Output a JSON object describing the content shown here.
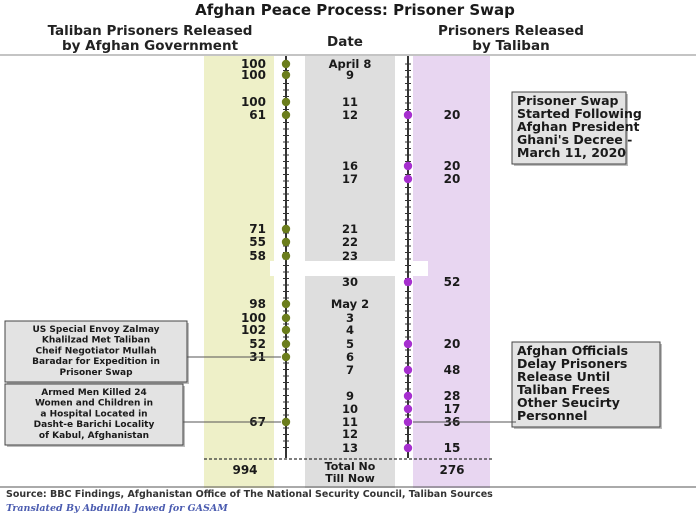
{
  "chart_data": {
    "type": "table",
    "title": "Afghan Peace Process: Prisoner Swap",
    "headers": {
      "left": [
        "Taliban Prisoners Released",
        "by Afghan Government"
      ],
      "center": "Date",
      "right": [
        "Prisoners Released",
        "by Taliban"
      ]
    },
    "rows": [
      {
        "date": "April 8",
        "gov": 100,
        "taliban": null
      },
      {
        "date": "9",
        "gov": 100,
        "taliban": null
      },
      {
        "date": "11",
        "gov": 100,
        "taliban": null
      },
      {
        "date": "12",
        "gov": 61,
        "taliban": 20
      },
      {
        "date": "16",
        "gov": null,
        "taliban": 20
      },
      {
        "date": "17",
        "gov": null,
        "taliban": 20
      },
      {
        "date": "21",
        "gov": 71,
        "taliban": null
      },
      {
        "date": "22",
        "gov": 55,
        "taliban": null
      },
      {
        "date": "23",
        "gov": 58,
        "taliban": null
      },
      {
        "date": "30",
        "gov": null,
        "taliban": 52
      },
      {
        "date": "May 2",
        "gov": 98,
        "taliban": null
      },
      {
        "date": "3",
        "gov": 100,
        "taliban": null
      },
      {
        "date": "4",
        "gov": 102,
        "taliban": null
      },
      {
        "date": "5",
        "gov": 52,
        "taliban": 20
      },
      {
        "date": "6",
        "gov": 31,
        "taliban": null
      },
      {
        "date": "7",
        "gov": null,
        "taliban": 48
      },
      {
        "date": "9",
        "gov": null,
        "taliban": 28
      },
      {
        "date": "10",
        "gov": null,
        "taliban": 17
      },
      {
        "date": "11",
        "gov": 67,
        "taliban": 36
      },
      {
        "date": "12",
        "gov": null,
        "taliban": null
      },
      {
        "date": "13",
        "gov": null,
        "taliban": 15
      }
    ],
    "totals": {
      "label": [
        "Total No",
        "Till Now"
      ],
      "gov": 994,
      "taliban": 276
    },
    "annotations": [
      {
        "side": "right",
        "row": 3,
        "lines": [
          "Prisoner Swap",
          "Started Following",
          "Afghan President",
          "Ghani's Decree -",
          "March 11, 2020"
        ]
      },
      {
        "side": "left",
        "row": 14,
        "lines": [
          "US Special Envoy Zalmay",
          "Khalilzad Met Taliban",
          "Cheif Negotiator Mullah",
          "Baradar for Expedition in",
          "Prisoner Swap"
        ]
      },
      {
        "side": "right",
        "row": 18,
        "lines": [
          "Afghan Officials",
          "Delay Prisoners",
          "Release Until",
          "Taliban Frees",
          "Other Seucirty",
          "Personnel"
        ]
      },
      {
        "side": "left",
        "row": 18,
        "lines": [
          "Armed Men Killed 24",
          "Women and Children in",
          "a Hospital Located in",
          "Dasht-e Barichi Locality",
          "of Kabul, Afghanistan"
        ]
      }
    ],
    "source": "Source: BBC Findings, Afghanistan Office of The National Security Council, Taliban Sources",
    "credit": "Translated By Abdullah Jawed for GASAM",
    "colors": {
      "gov_band": "#eef0c8",
      "gov_dot": "#6b7d1c",
      "date_band": "#dedede",
      "taliban_band": "#e8d6f1",
      "taliban_dot": "#a62fcf"
    }
  }
}
